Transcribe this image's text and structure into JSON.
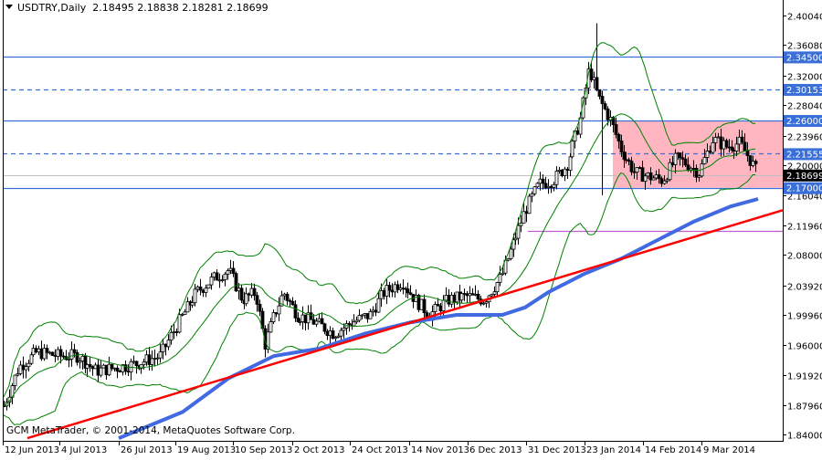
{
  "header": {
    "symbol_timeframe": "USDTRY,Daily",
    "ohlc": "2.18495 2.18838 2.18281 2.18699",
    "menu_icon": "triangle-down-icon"
  },
  "footer": {
    "copyright": "GCM MetaTrader, © 2001-2014, MetaQuotes Software Corp."
  },
  "colors": {
    "background": "#ffffff",
    "axis": "#000000",
    "level_line": "#3a6fd8",
    "level_label_bg": "#3a6fd8",
    "current_price_bg": "#000000",
    "current_price_line": "#c0c0c0",
    "range_box": "#ffb6c1",
    "bollinger": "#008000",
    "moving_average": "#4169e1",
    "trendline": "#ff0000",
    "support_line": "#c060d0"
  },
  "chart_data": {
    "type": "candlestick",
    "title": "USDTRY,Daily",
    "ohlc_last": {
      "open": 2.18495,
      "high": 2.18838,
      "low": 2.18281,
      "close": 2.18699
    },
    "xlabel": "",
    "ylabel": "",
    "ylim": [
      1.84,
      2.4004
    ],
    "grid": false,
    "y_ticks": [
      "2.40040",
      "2.36080",
      "2.32000",
      "2.28040",
      "2.23960",
      "2.20000",
      "2.16040",
      "2.11960",
      "2.08000",
      "2.03920",
      "1.99960",
      "1.96000",
      "1.91920",
      "1.87960",
      "1.84000"
    ],
    "x_ticks": [
      "12 Jun 2013",
      "4 Jul 2013",
      "26 Jul 2013",
      "19 Aug 2013",
      "10 Sep 2013",
      "2 Oct 2013",
      "24 Oct 2013",
      "14 Nov 2013",
      "6 Dec 2013",
      "31 Dec 2013",
      "23 Jan 2014",
      "14 Feb 2014",
      "9 Mar 2014"
    ],
    "horizontal_levels": [
      {
        "price": 2.345,
        "label": "2.34500",
        "style": "solid"
      },
      {
        "price": 2.30153,
        "label": "2.30153",
        "style": "dashed"
      },
      {
        "price": 2.26,
        "label": "2.26000",
        "style": "solid"
      },
      {
        "price": 2.21555,
        "label": "2.21555",
        "style": "dashed"
      },
      {
        "price": 2.17,
        "label": "2.17000",
        "style": "solid"
      }
    ],
    "current_price": {
      "price": 2.18699,
      "label": "2.18699"
    },
    "range_box": {
      "from_date": "late Jan 2014",
      "top": 2.26,
      "bottom": 2.17
    },
    "support_line": {
      "price": 2.112,
      "from_date": "31 Dec 2013"
    },
    "indicators": [
      "Bollinger Bands (green)",
      "Moving Average (blue, thick)",
      "Trendline (red)"
    ],
    "close_path": [
      {
        "date": "12 Jun 2013",
        "close": 1.88
      },
      {
        "date": "4 Jul 2013",
        "close": 1.94
      },
      {
        "date": "26 Jul 2013",
        "close": 1.93
      },
      {
        "date": "19 Aug 2013",
        "close": 2.02
      },
      {
        "date": "10 Sep 2013",
        "close": 1.99
      },
      {
        "date": "2 Oct 2013",
        "close": 1.99
      },
      {
        "date": "24 Oct 2013",
        "close": 2.0
      },
      {
        "date": "14 Nov 2013",
        "close": 2.02
      },
      {
        "date": "6 Dec 2013",
        "close": 2.04
      },
      {
        "date": "31 Dec 2013",
        "close": 2.17
      },
      {
        "date": "23 Jan 2014",
        "close": 2.27
      },
      {
        "date": "14 Feb 2014",
        "close": 2.18
      },
      {
        "date": "9 Mar 2014",
        "close": 2.22
      },
      {
        "date": "last",
        "close": 2.18699
      }
    ]
  }
}
